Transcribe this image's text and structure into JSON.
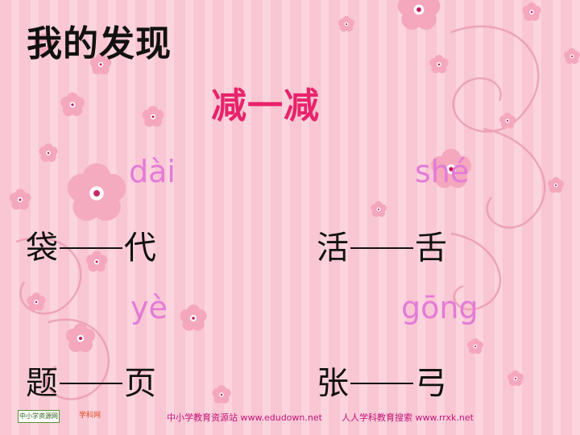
{
  "slide": {
    "title": "我的发现",
    "subtitle": "减一减",
    "pairs": [
      {
        "pinyin": "dài",
        "left": "袋",
        "right": "代"
      },
      {
        "pinyin": "shé",
        "left": "活",
        "right": "舌"
      },
      {
        "pinyin": "yè",
        "left": "题",
        "right": "页"
      },
      {
        "pinyin": "gōng",
        "left": "张",
        "right": "弓"
      }
    ]
  },
  "footer": {
    "site1": "中小学教育资源站 www.edudown.net",
    "site2": "人人学科教育搜索  www.rrxk.net",
    "logo1_text": "中小学资源网",
    "logo2_text": "学科网"
  },
  "colors": {
    "title": "#111111",
    "subtitle": "#e8236b",
    "pinyin": "#e37bd8",
    "background": "#f9c6d3"
  }
}
